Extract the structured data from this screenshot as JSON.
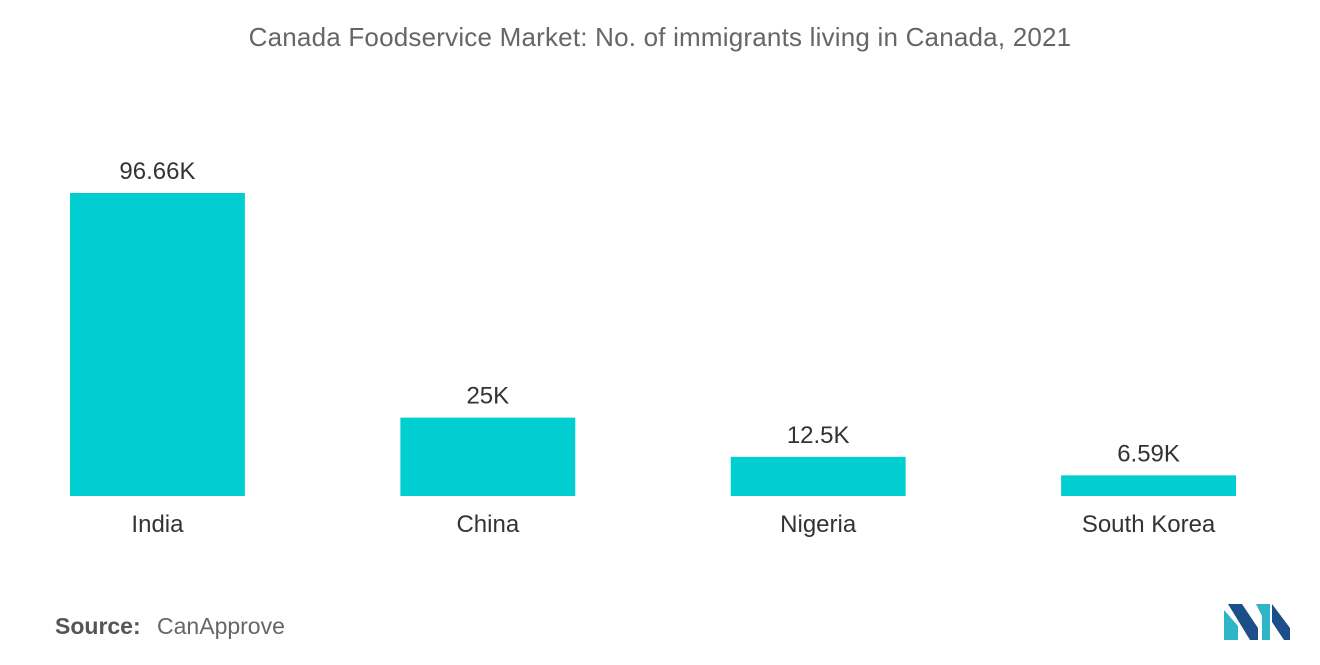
{
  "title": "Canada Foodservice Market: No. of immigrants living in Canada, 2021",
  "source": {
    "label": "Source:",
    "value": "CanApprove"
  },
  "logo_icon": "mordor-intelligence-logo-icon",
  "colors": {
    "bar": "#00CED1",
    "logo_dark": "#1C4E8A",
    "logo_light": "#2FB5C8"
  },
  "chart_data": {
    "type": "bar",
    "categories": [
      "India",
      "China",
      "Nigeria",
      "South Korea"
    ],
    "values": [
      96.66,
      25,
      12.5,
      6.59
    ],
    "value_labels": [
      "96.66K",
      "25K",
      "12.5K",
      "6.59K"
    ],
    "title": "Canada Foodservice Market: No. of immigrants living in Canada, 2021",
    "xlabel": "",
    "ylabel": "",
    "ylim": [
      0,
      96.66
    ],
    "grid": false,
    "legend": "none"
  }
}
